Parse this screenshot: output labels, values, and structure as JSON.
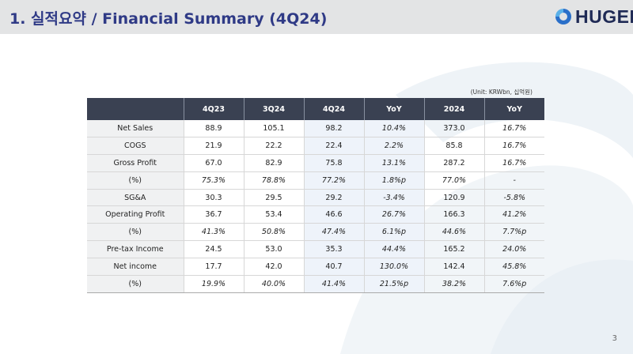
{
  "header": {
    "title": "1. 실적요약 / Financial Summary (4Q24)"
  },
  "logo": {
    "text": "HUGEL"
  },
  "unit_note": "(Unit: KRWbn, 십억원)",
  "table": {
    "columns": [
      "",
      "4Q23",
      "3Q24",
      "4Q24",
      "YoY",
      "2024",
      "YoY"
    ],
    "rows": [
      {
        "label": "Net Sales",
        "cells": [
          "88.9",
          "105.1",
          "98.2",
          "10.4%",
          "373.0",
          "16.7%"
        ]
      },
      {
        "label": "COGS",
        "cells": [
          "21.9",
          "22.2",
          "22.4",
          "2.2%",
          "85.8",
          "16.7%"
        ]
      },
      {
        "label": "Gross Profit",
        "cells": [
          "67.0",
          "82.9",
          "75.8",
          "13.1%",
          "287.2",
          "16.7%"
        ]
      },
      {
        "label": "(%)",
        "cells": [
          "75.3%",
          "78.8%",
          "77.2%",
          "1.8%p",
          "77.0%",
          "-"
        ]
      },
      {
        "label": "SG&A",
        "cells": [
          "30.3",
          "29.5",
          "29.2",
          "-3.4%",
          "120.9",
          "-5.8%"
        ]
      },
      {
        "label": "Operating Profit",
        "cells": [
          "36.7",
          "53.4",
          "46.6",
          "26.7%",
          "166.3",
          "41.2%"
        ]
      },
      {
        "label": "(%)",
        "cells": [
          "41.3%",
          "50.8%",
          "47.4%",
          "6.1%p",
          "44.6%",
          "7.7%p"
        ]
      },
      {
        "label": "Pre-tax Income",
        "cells": [
          "24.5",
          "53.0",
          "35.3",
          "44.4%",
          "165.2",
          "24.0%"
        ]
      },
      {
        "label": "Net income",
        "cells": [
          "17.7",
          "42.0",
          "40.7",
          "130.0%",
          "142.4",
          "45.8%"
        ]
      },
      {
        "label": "(%)",
        "cells": [
          "19.9%",
          "40.0%",
          "41.4%",
          "21.5%p",
          "38.2%",
          "7.6%p"
        ]
      }
    ]
  },
  "page_number": "3",
  "colors": {
    "title": "#2f3a86",
    "header_bg": "#e3e4e5",
    "table_header": "#3a4152",
    "highlight": "#eef3fa"
  }
}
